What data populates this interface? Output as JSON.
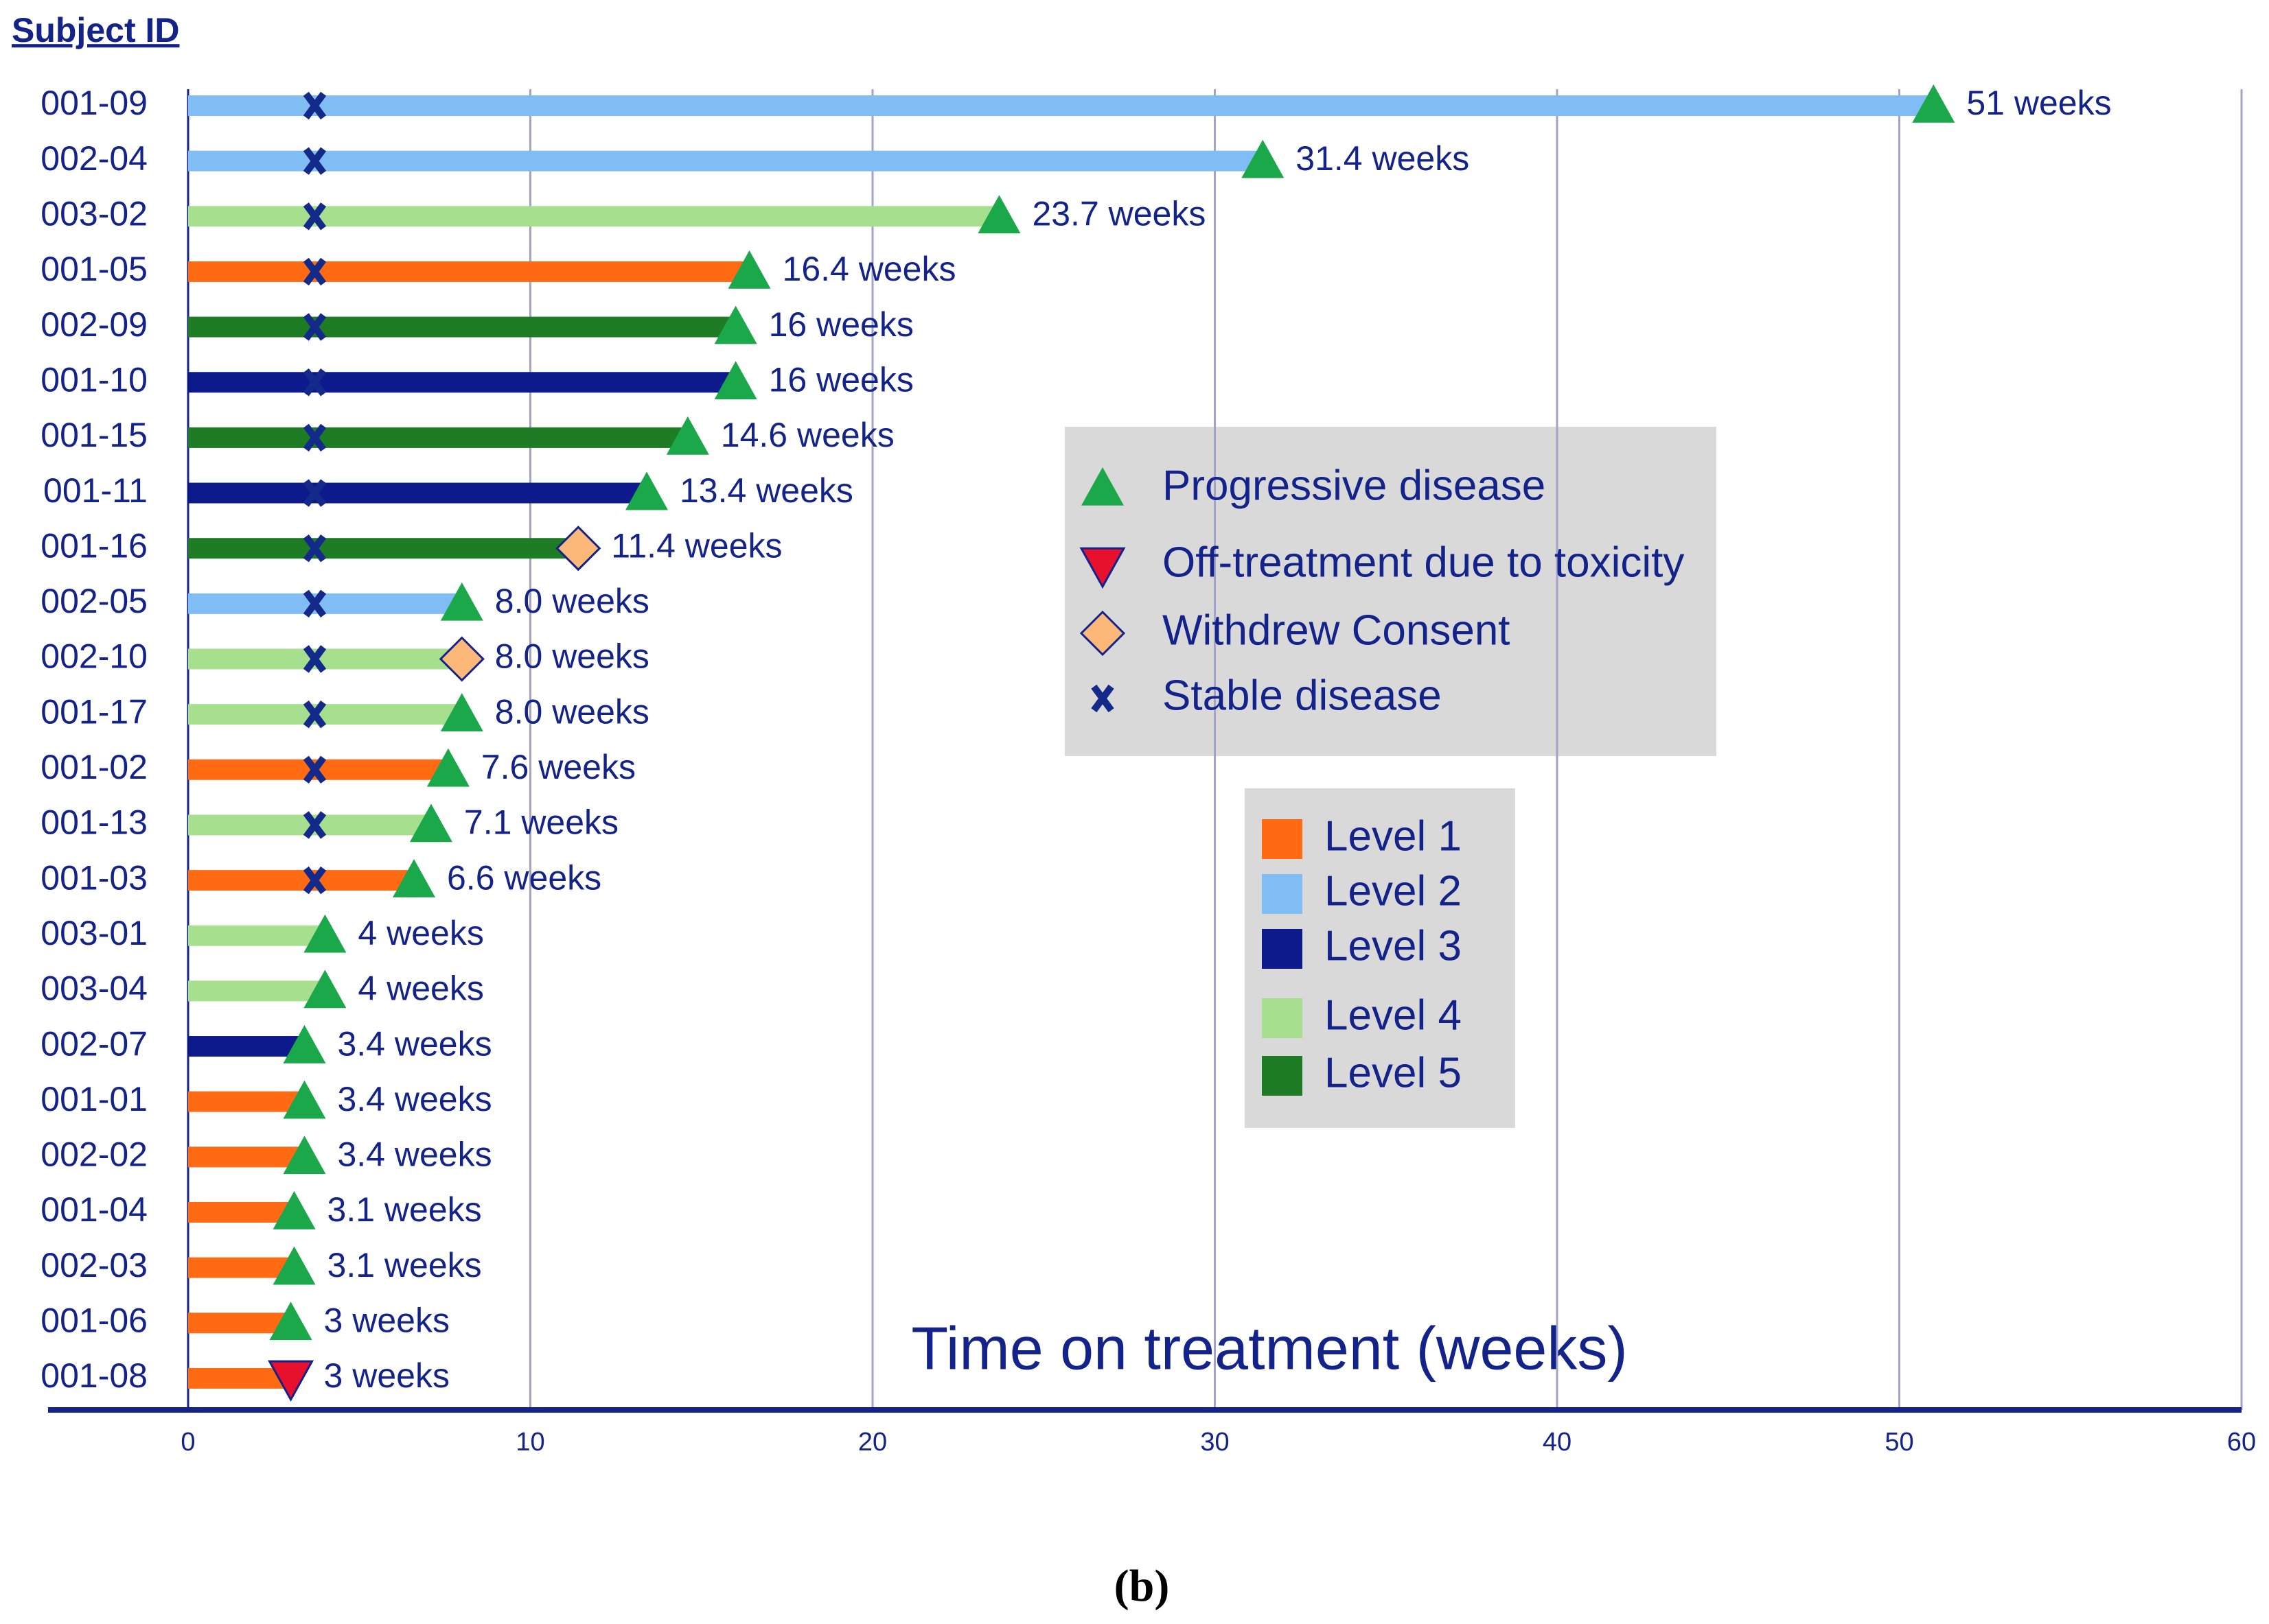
{
  "chart_data": {
    "type": "bar",
    "orientation": "horizontal",
    "y_label": "Subject ID",
    "x_label": "Time on treatment (weeks)",
    "caption": "(b)",
    "categories": [
      "001-09",
      "002-04",
      "003-02",
      "001-05",
      "002-09",
      "001-10",
      "001-15",
      "001-11",
      "001-16",
      "002-05",
      "002-10",
      "001-17",
      "001-02",
      "001-13",
      "001-03",
      "003-01",
      "003-04",
      "002-07",
      "001-01",
      "002-02",
      "001-04",
      "002-03",
      "001-06",
      "001-08"
    ],
    "series": [
      {
        "name": "Level 1",
        "color": "#ff6a13",
        "values": [
          null,
          null,
          null,
          16.4,
          null,
          null,
          null,
          null,
          null,
          null,
          null,
          null,
          7.6,
          null,
          6.6,
          null,
          null,
          null,
          3.4,
          3.4,
          3.1,
          3.1,
          3,
          3
        ],
        "value_labels": [
          null,
          null,
          null,
          "16.4 weeks",
          null,
          null,
          null,
          null,
          null,
          null,
          null,
          null,
          "7.6 weeks",
          null,
          "6.6 weeks",
          null,
          null,
          null,
          "3.4 weeks",
          "3.4 weeks",
          "3.1 weeks",
          "3.1 weeks",
          "3 weeks",
          "3 weeks"
        ]
      },
      {
        "name": "Level 2",
        "color": "#80bdf5",
        "values": [
          51,
          31.4,
          null,
          null,
          null,
          null,
          null,
          null,
          null,
          8.0,
          null,
          null,
          null,
          null,
          null,
          null,
          null,
          null,
          null,
          null,
          null,
          null,
          null,
          null
        ],
        "value_labels": [
          "51 weeks",
          "31.4 weeks",
          null,
          null,
          null,
          null,
          null,
          null,
          null,
          "8.0 weeks",
          null,
          null,
          null,
          null,
          null,
          null,
          null,
          null,
          null,
          null,
          null,
          null,
          null,
          null
        ]
      },
      {
        "name": "Level 3",
        "color": "#0d1a8c",
        "values": [
          null,
          null,
          null,
          null,
          null,
          16,
          null,
          13.4,
          null,
          null,
          null,
          null,
          null,
          null,
          null,
          null,
          null,
          3.4,
          null,
          null,
          null,
          null,
          null,
          null
        ],
        "value_labels": [
          null,
          null,
          null,
          null,
          null,
          "16 weeks",
          null,
          "13.4 weeks",
          null,
          null,
          null,
          null,
          null,
          null,
          null,
          null,
          null,
          "3.4 weeks",
          null,
          null,
          null,
          null,
          null,
          null
        ]
      },
      {
        "name": "Level 4",
        "color": "#a6df8e",
        "values": [
          null,
          null,
          23.7,
          null,
          null,
          null,
          null,
          null,
          null,
          null,
          8.0,
          8.0,
          null,
          7.1,
          null,
          4,
          4,
          null,
          null,
          null,
          null,
          null,
          null,
          null
        ],
        "value_labels": [
          null,
          null,
          "23.7 weeks",
          null,
          null,
          null,
          null,
          null,
          null,
          null,
          "8.0 weeks",
          "8.0 weeks",
          null,
          "7.1 weeks",
          null,
          "4 weeks",
          "4 weeks",
          null,
          null,
          null,
          null,
          null,
          null,
          null
        ]
      },
      {
        "name": "Level 5",
        "color": "#1e7d24",
        "values": [
          null,
          null,
          null,
          null,
          16,
          null,
          14.6,
          null,
          11.4,
          null,
          null,
          null,
          null,
          null,
          null,
          null,
          null,
          null,
          null,
          null,
          null,
          null,
          null,
          null
        ],
        "value_labels": [
          null,
          null,
          null,
          null,
          "16 weeks",
          null,
          "14.6 weeks",
          null,
          "11.4 weeks",
          null,
          null,
          null,
          null,
          null,
          null,
          null,
          null,
          null,
          null,
          null,
          null,
          null,
          null,
          null
        ]
      }
    ],
    "markers": [
      {
        "name": "Progressive disease",
        "shape": "triangle-up",
        "color": "#1aa84a",
        "values": [
          51,
          31.4,
          23.7,
          16.4,
          16,
          16,
          14.6,
          13.4,
          null,
          8.0,
          null,
          8.0,
          7.6,
          7.1,
          6.6,
          4,
          4,
          3.4,
          3.4,
          3.4,
          3.1,
          3.1,
          3,
          null
        ]
      },
      {
        "name": "Off-treatment due to toxicity",
        "shape": "triangle-down",
        "color": "#e8112d",
        "values": [
          null,
          null,
          null,
          null,
          null,
          null,
          null,
          null,
          null,
          null,
          null,
          null,
          null,
          null,
          null,
          null,
          null,
          null,
          null,
          null,
          null,
          null,
          null,
          3
        ]
      },
      {
        "name": "Withdrew Consent",
        "shape": "diamond",
        "color": "#fbb878",
        "values": [
          null,
          null,
          null,
          null,
          null,
          null,
          null,
          null,
          11.4,
          null,
          8.0,
          null,
          null,
          null,
          null,
          null,
          null,
          null,
          null,
          null,
          null,
          null,
          null,
          null
        ]
      },
      {
        "name": "Stable disease",
        "shape": "x",
        "color": "#142a8a",
        "values": [
          3.7,
          3.7,
          3.7,
          3.7,
          3.7,
          3.7,
          3.7,
          3.7,
          3.7,
          3.7,
          3.7,
          3.7,
          3.7,
          3.7,
          3.7,
          null,
          null,
          null,
          null,
          null,
          null,
          null,
          null,
          null
        ]
      }
    ],
    "xlim": [
      0,
      60
    ],
    "xticks": [
      0,
      10,
      20,
      30,
      40,
      50,
      60
    ],
    "grid": true
  }
}
